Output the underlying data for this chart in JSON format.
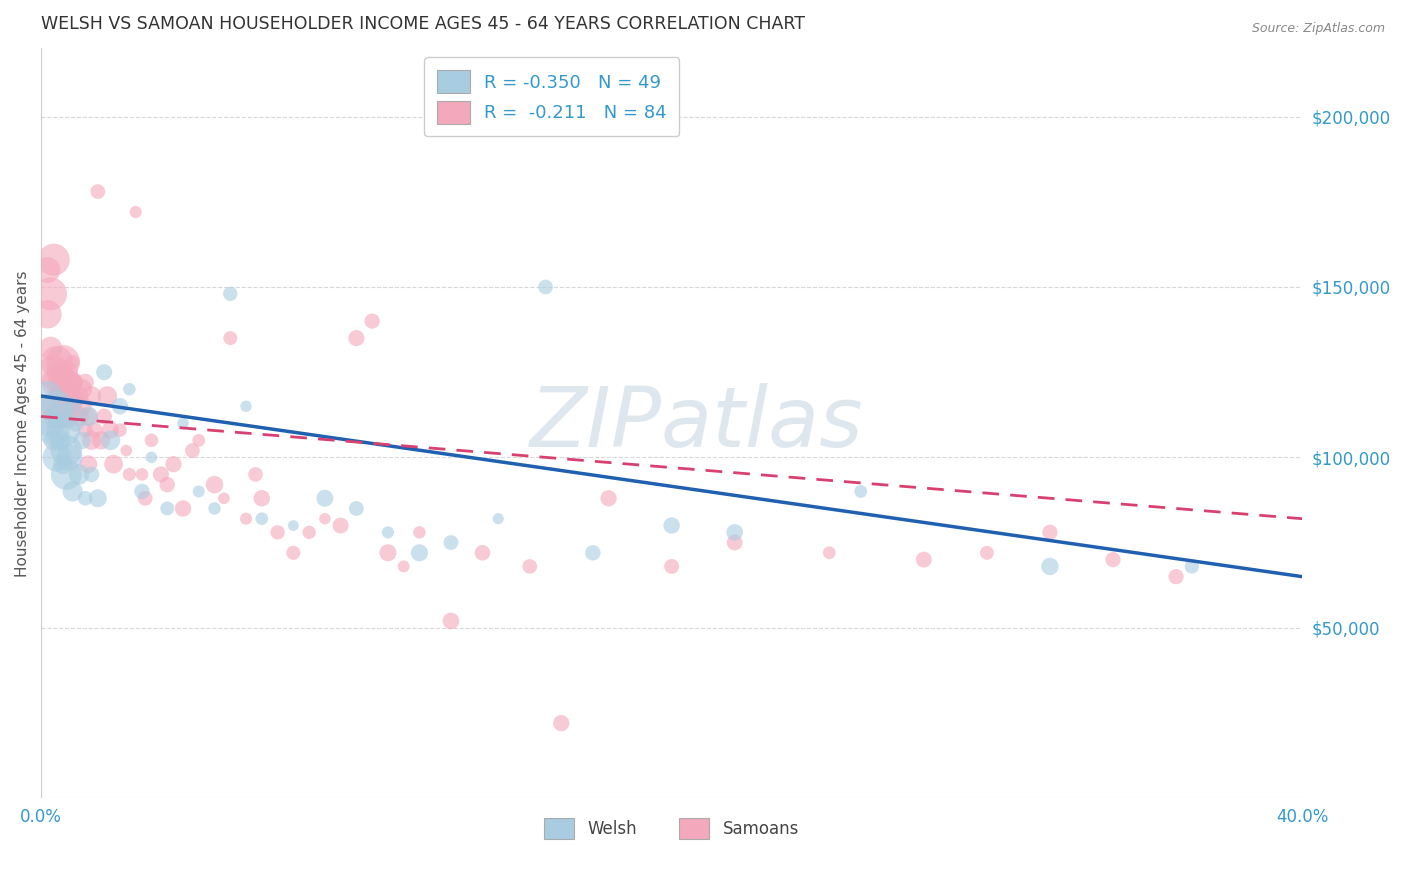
{
  "title": "WELSH VS SAMOAN HOUSEHOLDER INCOME AGES 45 - 64 YEARS CORRELATION CHART",
  "source": "Source: ZipAtlas.com",
  "ylabel": "Householder Income Ages 45 - 64 years",
  "xlim": [
    0.0,
    0.4
  ],
  "ylim": [
    0,
    220000
  ],
  "welsh_R": -0.35,
  "welsh_N": 49,
  "samoan_R": -0.211,
  "samoan_N": 84,
  "welsh_color": "#a8cce0",
  "samoan_color": "#f4a8bc",
  "welsh_line_color": "#2060b0",
  "samoan_line_color": "#d84070",
  "axis_label_color": "#3399cc",
  "title_color": "#333333",
  "watermark_color": "#d0dde8",
  "grid_color": "#d8d8d8",
  "welsh_line_x0": 0.0,
  "welsh_line_y0": 118000,
  "welsh_line_x1": 0.4,
  "welsh_line_y1": 65000,
  "samoan_line_x0": 0.0,
  "samoan_line_y0": 112000,
  "samoan_line_x1": 0.4,
  "samoan_line_y1": 82000,
  "welsh_x": [
    0.002,
    0.003,
    0.004,
    0.004,
    0.005,
    0.005,
    0.006,
    0.006,
    0.007,
    0.007,
    0.008,
    0.008,
    0.009,
    0.01,
    0.01,
    0.011,
    0.012,
    0.013,
    0.014,
    0.015,
    0.016,
    0.018,
    0.02,
    0.022,
    0.025,
    0.028,
    0.032,
    0.035,
    0.04,
    0.045,
    0.05,
    0.055,
    0.06,
    0.065,
    0.07,
    0.08,
    0.09,
    0.1,
    0.11,
    0.12,
    0.13,
    0.145,
    0.16,
    0.175,
    0.2,
    0.22,
    0.26,
    0.32,
    0.365
  ],
  "welsh_y": [
    118000,
    110000,
    108000,
    105000,
    115000,
    100000,
    112000,
    105000,
    108000,
    98000,
    102000,
    95000,
    100000,
    115000,
    90000,
    110000,
    95000,
    105000,
    88000,
    112000,
    95000,
    88000,
    125000,
    105000,
    115000,
    120000,
    90000,
    100000,
    85000,
    110000,
    90000,
    85000,
    148000,
    115000,
    82000,
    80000,
    88000,
    85000,
    78000,
    72000,
    75000,
    82000,
    150000,
    72000,
    80000,
    78000,
    90000,
    68000,
    68000
  ],
  "samoan_x": [
    0.001,
    0.002,
    0.002,
    0.003,
    0.003,
    0.004,
    0.004,
    0.005,
    0.005,
    0.005,
    0.006,
    0.006,
    0.007,
    0.007,
    0.007,
    0.008,
    0.008,
    0.008,
    0.009,
    0.009,
    0.01,
    0.01,
    0.01,
    0.011,
    0.011,
    0.012,
    0.012,
    0.013,
    0.013,
    0.014,
    0.014,
    0.015,
    0.015,
    0.016,
    0.016,
    0.017,
    0.018,
    0.019,
    0.02,
    0.021,
    0.022,
    0.023,
    0.025,
    0.027,
    0.028,
    0.03,
    0.032,
    0.033,
    0.035,
    0.038,
    0.04,
    0.042,
    0.045,
    0.048,
    0.05,
    0.055,
    0.058,
    0.06,
    0.065,
    0.068,
    0.07,
    0.075,
    0.08,
    0.085,
    0.09,
    0.095,
    0.1,
    0.105,
    0.11,
    0.115,
    0.12,
    0.13,
    0.14,
    0.155,
    0.165,
    0.18,
    0.2,
    0.22,
    0.25,
    0.28,
    0.3,
    0.32,
    0.34,
    0.36
  ],
  "samoan_y": [
    115000,
    142000,
    155000,
    132000,
    148000,
    125000,
    158000,
    112000,
    122000,
    128000,
    118000,
    125000,
    120000,
    128000,
    122000,
    118000,
    125000,
    112000,
    118000,
    122000,
    115000,
    122000,
    128000,
    118000,
    122000,
    112000,
    118000,
    115000,
    120000,
    108000,
    122000,
    112000,
    98000,
    105000,
    118000,
    108000,
    178000,
    105000,
    112000,
    118000,
    108000,
    98000,
    108000,
    102000,
    95000,
    172000,
    95000,
    88000,
    105000,
    95000,
    92000,
    98000,
    85000,
    102000,
    105000,
    92000,
    88000,
    135000,
    82000,
    95000,
    88000,
    78000,
    72000,
    78000,
    82000,
    80000,
    135000,
    140000,
    72000,
    68000,
    78000,
    52000,
    72000,
    68000,
    22000,
    88000,
    68000,
    75000,
    72000,
    70000,
    72000,
    78000,
    70000,
    65000
  ]
}
